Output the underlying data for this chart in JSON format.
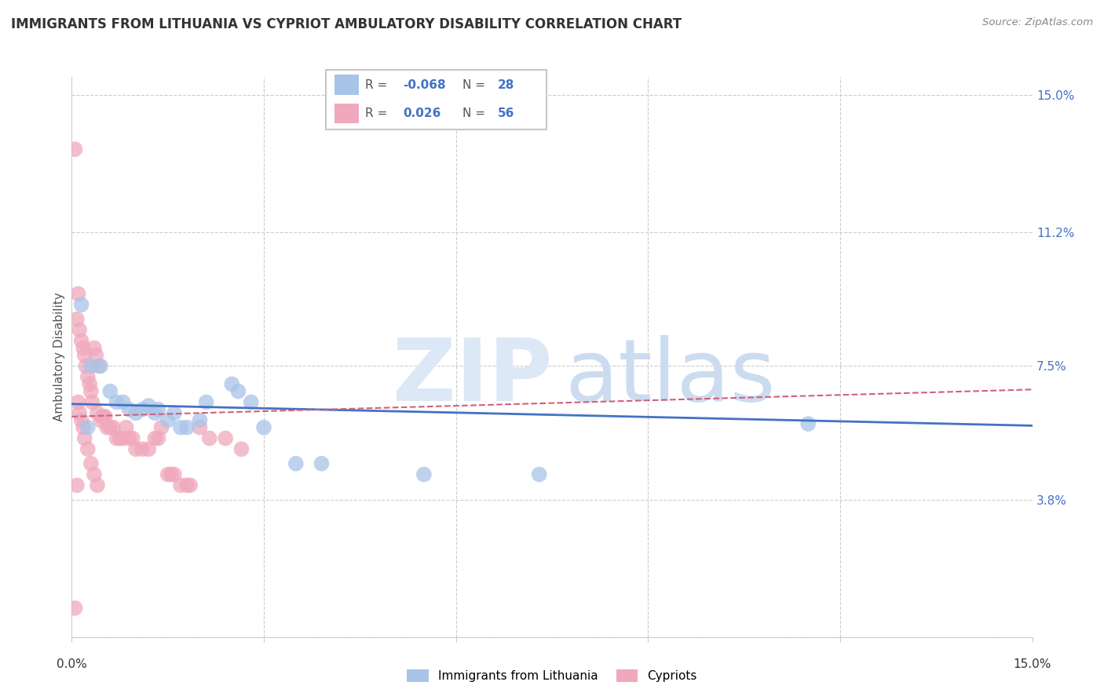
{
  "title": "IMMIGRANTS FROM LITHUANIA VS CYPRIOT AMBULATORY DISABILITY CORRELATION CHART",
  "source": "Source: ZipAtlas.com",
  "ylabel": "Ambulatory Disability",
  "ytick_vals": [
    0.0,
    3.8,
    7.5,
    11.2,
    15.0
  ],
  "ytick_labels": [
    "",
    "3.8%",
    "7.5%",
    "11.2%",
    "15.0%"
  ],
  "xmin": 0.0,
  "xmax": 15.0,
  "ymin": 0.0,
  "ymax": 15.5,
  "legend_blue_r": "-0.068",
  "legend_blue_n": "28",
  "legend_pink_r": "0.026",
  "legend_pink_n": "56",
  "blue_color": "#a8c4e8",
  "pink_color": "#f0a8bc",
  "blue_line_color": "#4472c4",
  "pink_line_color": "#d06080",
  "blue_trend_start": 6.45,
  "blue_trend_end": 5.85,
  "pink_trend_start": 6.1,
  "pink_trend_end": 6.85,
  "blue_scatter": [
    [
      0.15,
      9.2
    ],
    [
      0.3,
      7.5
    ],
    [
      0.45,
      7.5
    ],
    [
      0.6,
      6.8
    ],
    [
      0.7,
      6.5
    ],
    [
      0.8,
      6.5
    ],
    [
      0.9,
      6.3
    ],
    [
      1.0,
      6.2
    ],
    [
      1.1,
      6.3
    ],
    [
      1.2,
      6.4
    ],
    [
      1.3,
      6.2
    ],
    [
      1.35,
      6.3
    ],
    [
      1.5,
      6.0
    ],
    [
      1.6,
      6.2
    ],
    [
      1.7,
      5.8
    ],
    [
      1.8,
      5.8
    ],
    [
      2.0,
      6.0
    ],
    [
      2.1,
      6.5
    ],
    [
      2.5,
      7.0
    ],
    [
      2.6,
      6.8
    ],
    [
      2.8,
      6.5
    ],
    [
      3.0,
      5.8
    ],
    [
      3.5,
      4.8
    ],
    [
      3.9,
      4.8
    ],
    [
      5.5,
      4.5
    ],
    [
      7.3,
      4.5
    ],
    [
      11.5,
      5.9
    ],
    [
      0.25,
      5.8
    ]
  ],
  "pink_scatter": [
    [
      0.05,
      13.5
    ],
    [
      0.08,
      8.8
    ],
    [
      0.1,
      9.5
    ],
    [
      0.12,
      8.5
    ],
    [
      0.15,
      8.2
    ],
    [
      0.18,
      8.0
    ],
    [
      0.2,
      7.8
    ],
    [
      0.22,
      7.5
    ],
    [
      0.25,
      7.2
    ],
    [
      0.28,
      7.0
    ],
    [
      0.3,
      6.8
    ],
    [
      0.32,
      6.5
    ],
    [
      0.35,
      8.0
    ],
    [
      0.38,
      7.8
    ],
    [
      0.4,
      6.2
    ],
    [
      0.42,
      7.5
    ],
    [
      0.45,
      6.0
    ],
    [
      0.48,
      6.1
    ],
    [
      0.5,
      6.1
    ],
    [
      0.52,
      6.1
    ],
    [
      0.55,
      5.8
    ],
    [
      0.6,
      5.8
    ],
    [
      0.65,
      5.8
    ],
    [
      0.7,
      5.5
    ],
    [
      0.75,
      5.5
    ],
    [
      0.8,
      5.5
    ],
    [
      0.85,
      5.8
    ],
    [
      0.9,
      5.5
    ],
    [
      0.95,
      5.5
    ],
    [
      1.0,
      5.2
    ],
    [
      1.1,
      5.2
    ],
    [
      1.2,
      5.2
    ],
    [
      1.3,
      5.5
    ],
    [
      1.35,
      5.5
    ],
    [
      1.4,
      5.8
    ],
    [
      1.5,
      4.5
    ],
    [
      1.55,
      4.5
    ],
    [
      1.6,
      4.5
    ],
    [
      1.7,
      4.2
    ],
    [
      1.8,
      4.2
    ],
    [
      1.85,
      4.2
    ],
    [
      2.0,
      5.8
    ],
    [
      2.15,
      5.5
    ],
    [
      2.4,
      5.5
    ],
    [
      2.65,
      5.2
    ],
    [
      0.1,
      6.5
    ],
    [
      0.12,
      6.2
    ],
    [
      0.15,
      6.0
    ],
    [
      0.18,
      5.8
    ],
    [
      0.2,
      5.5
    ],
    [
      0.25,
      5.2
    ],
    [
      0.3,
      4.8
    ],
    [
      0.35,
      4.5
    ],
    [
      0.4,
      4.2
    ],
    [
      0.05,
      0.8
    ],
    [
      0.08,
      4.2
    ]
  ]
}
